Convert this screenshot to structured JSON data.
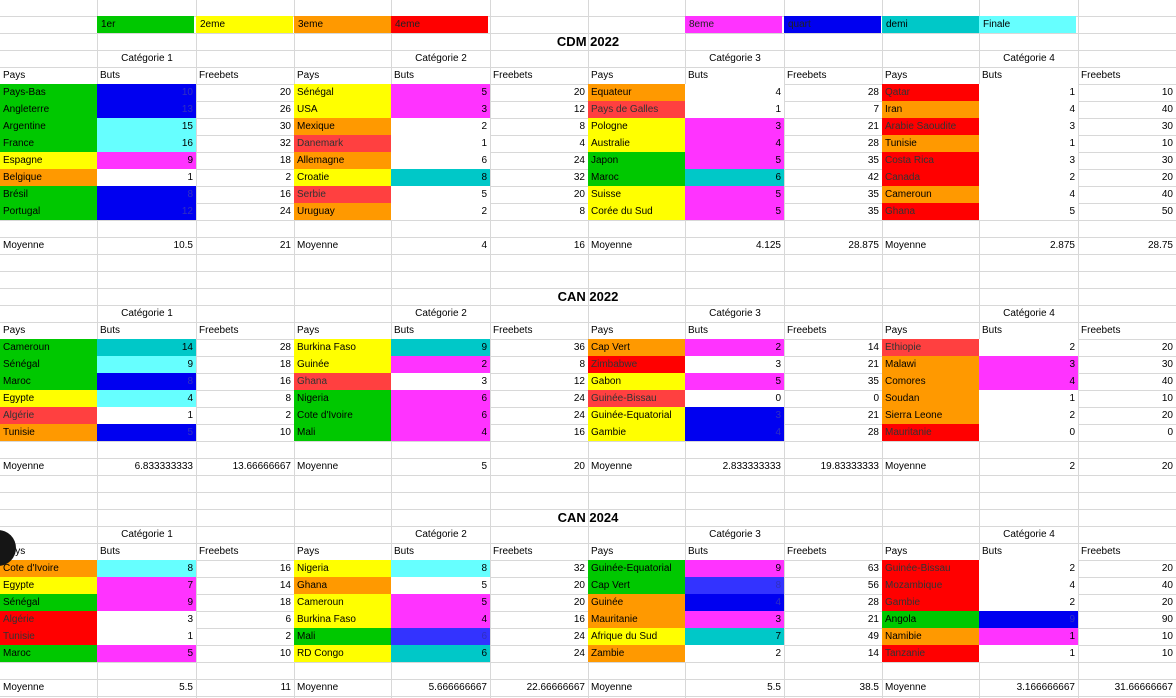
{
  "colors": {
    "green": "#00c800",
    "blue": "#0000f0",
    "cyan": "#66ffff",
    "yellow": "#ffff00",
    "orange": "#ff9900",
    "red": "#ff0000",
    "magenta": "#ff33ff",
    "white": "#ffffff",
    "redsoft": "#ff4040",
    "teal": "#00c8c8",
    "blue2": "#3333ff"
  },
  "legend": [
    {
      "label": "1er",
      "color": "green"
    },
    {
      "label": "2eme",
      "color": "yellow"
    },
    {
      "label": "3eme",
      "color": "orange"
    },
    {
      "label": "4eme",
      "color": "red"
    },
    {
      "label": "8eme",
      "color": "magenta"
    },
    {
      "label": "quart",
      "color": "blue"
    },
    {
      "label": "demi",
      "color": "teal"
    },
    {
      "label": "Finale",
      "color": "cyan"
    }
  ],
  "headers": {
    "pays": "Pays",
    "buts": "Buts",
    "freebets": "Freebets",
    "moyenne": "Moyenne"
  },
  "sections": [
    {
      "title": "CDM 2022",
      "categories": [
        {
          "name": "Catégorie 1",
          "rows": [
            {
              "country": "Pays-Bas",
              "cc": "green",
              "goals": "10",
              "gc": "blue",
              "fb": "20"
            },
            {
              "country": "Angleterre",
              "cc": "green",
              "goals": "13",
              "gc": "blue",
              "fb": "26"
            },
            {
              "country": "Argentine",
              "cc": "green",
              "goals": "15",
              "gc": "cyan",
              "fb": "30"
            },
            {
              "country": "France",
              "cc": "green",
              "goals": "16",
              "gc": "cyan",
              "fb": "32"
            },
            {
              "country": "Espagne",
              "cc": "yellow",
              "goals": "9",
              "gc": "magenta",
              "fb": "18"
            },
            {
              "country": "Belgique",
              "cc": "orange",
              "goals": "1",
              "gc": "white",
              "fb": "2"
            },
            {
              "country": "Brésil",
              "cc": "green",
              "goals": "8",
              "gc": "blue",
              "fb": "16"
            },
            {
              "country": "Portugal",
              "cc": "green",
              "goals": "12",
              "gc": "blue",
              "fb": "24"
            }
          ],
          "avg_goals": "10.5",
          "avg_fb": "21"
        },
        {
          "name": "Catégorie 2",
          "rows": [
            {
              "country": "Sénégal",
              "cc": "yellow",
              "goals": "5",
              "gc": "magenta",
              "fb": "20"
            },
            {
              "country": "USA",
              "cc": "yellow",
              "goals": "3",
              "gc": "magenta",
              "fb": "12"
            },
            {
              "country": "Mexique",
              "cc": "orange",
              "goals": "2",
              "gc": "white",
              "fb": "8"
            },
            {
              "country": "Danemark",
              "cc": "redsoft",
              "goals": "1",
              "gc": "white",
              "fb": "4"
            },
            {
              "country": "Allemagne",
              "cc": "orange",
              "goals": "6",
              "gc": "white",
              "fb": "24"
            },
            {
              "country": "Croatie",
              "cc": "yellow",
              "goals": "8",
              "gc": "teal",
              "fb": "32"
            },
            {
              "country": "Serbie",
              "cc": "redsoft",
              "goals": "5",
              "gc": "white",
              "fb": "20"
            },
            {
              "country": "Uruguay",
              "cc": "orange",
              "goals": "2",
              "gc": "white",
              "fb": "8"
            }
          ],
          "avg_goals": "4",
          "avg_fb": "16"
        },
        {
          "name": "Catégorie 3",
          "rows": [
            {
              "country": "Equateur",
              "cc": "orange",
              "goals": "4",
              "gc": "white",
              "fb": "28"
            },
            {
              "country": "Pays de Galles",
              "cc": "redsoft",
              "goals": "1",
              "gc": "white",
              "fb": "7"
            },
            {
              "country": "Pologne",
              "cc": "yellow",
              "goals": "3",
              "gc": "magenta",
              "fb": "21"
            },
            {
              "country": "Australie",
              "cc": "yellow",
              "goals": "4",
              "gc": "magenta",
              "fb": "28"
            },
            {
              "country": "Japon",
              "cc": "green",
              "goals": "5",
              "gc": "magenta",
              "fb": "35"
            },
            {
              "country": "Maroc",
              "cc": "green",
              "goals": "6",
              "gc": "teal",
              "fb": "42"
            },
            {
              "country": "Suisse",
              "cc": "yellow",
              "goals": "5",
              "gc": "magenta",
              "fb": "35"
            },
            {
              "country": "Corée du Sud",
              "cc": "yellow",
              "goals": "5",
              "gc": "magenta",
              "fb": "35"
            }
          ],
          "avg_goals": "4.125",
          "avg_fb": "28.875"
        },
        {
          "name": "Catégorie 4",
          "rows": [
            {
              "country": "Qatar",
              "cc": "red",
              "goals": "1",
              "gc": "white",
              "fb": "10"
            },
            {
              "country": "Iran",
              "cc": "orange",
              "goals": "4",
              "gc": "white",
              "fb": "40"
            },
            {
              "country": "Arabie Saoudite",
              "cc": "red",
              "goals": "3",
              "gc": "white",
              "fb": "30"
            },
            {
              "country": "Tunisie",
              "cc": "orange",
              "goals": "1",
              "gc": "white",
              "fb": "10"
            },
            {
              "country": "Costa Rica",
              "cc": "red",
              "goals": "3",
              "gc": "white",
              "fb": "30"
            },
            {
              "country": "Canada",
              "cc": "red",
              "goals": "2",
              "gc": "white",
              "fb": "20"
            },
            {
              "country": "Cameroun",
              "cc": "orange",
              "goals": "4",
              "gc": "white",
              "fb": "40"
            },
            {
              "country": "Ghana",
              "cc": "red",
              "goals": "5",
              "gc": "white",
              "fb": "50"
            }
          ],
          "avg_goals": "2.875",
          "avg_fb": "28.75"
        }
      ]
    },
    {
      "title": "CAN 2022",
      "categories": [
        {
          "name": "Catégorie 1",
          "rows": [
            {
              "country": "Cameroun",
              "cc": "green",
              "goals": "14",
              "gc": "teal",
              "fb": "28"
            },
            {
              "country": "Sénégal",
              "cc": "green",
              "goals": "9",
              "gc": "cyan",
              "fb": "18"
            },
            {
              "country": "Maroc",
              "cc": "green",
              "goals": "8",
              "gc": "blue",
              "fb": "16"
            },
            {
              "country": "Egypte",
              "cc": "yellow",
              "goals": "4",
              "gc": "cyan",
              "fb": "8"
            },
            {
              "country": "Algérie",
              "cc": "redsoft",
              "goals": "1",
              "gc": "white",
              "fb": "2"
            },
            {
              "country": "Tunisie",
              "cc": "orange",
              "goals": "5",
              "gc": "blue",
              "fb": "10"
            }
          ],
          "avg_goals": "6.833333333",
          "avg_fb": "13.66666667"
        },
        {
          "name": "Catégorie 2",
          "rows": [
            {
              "country": "Burkina Faso",
              "cc": "yellow",
              "goals": "9",
              "gc": "teal",
              "fb": "36"
            },
            {
              "country": "Guinée",
              "cc": "yellow",
              "goals": "2",
              "gc": "magenta",
              "fb": "8"
            },
            {
              "country": "Ghana",
              "cc": "redsoft",
              "goals": "3",
              "gc": "white",
              "fb": "12"
            },
            {
              "country": "Nigeria",
              "cc": "green",
              "goals": "6",
              "gc": "magenta",
              "fb": "24"
            },
            {
              "country": "Cote d'Ivoire",
              "cc": "green",
              "goals": "6",
              "gc": "magenta",
              "fb": "24"
            },
            {
              "country": "Mali",
              "cc": "green",
              "goals": "4",
              "gc": "magenta",
              "fb": "16"
            }
          ],
          "avg_goals": "5",
          "avg_fb": "20"
        },
        {
          "name": "Catégorie 3",
          "rows": [
            {
              "country": "Cap Vert",
              "cc": "orange",
              "goals": "2",
              "gc": "magenta",
              "fb": "14"
            },
            {
              "country": "Zimbabwe",
              "cc": "red",
              "goals": "3",
              "gc": "white",
              "fb": "21"
            },
            {
              "country": "Gabon",
              "cc": "yellow",
              "goals": "5",
              "gc": "magenta",
              "fb": "35"
            },
            {
              "country": "Guinée-Bissau",
              "cc": "redsoft",
              "goals": "0",
              "gc": "white",
              "fb": "0"
            },
            {
              "country": "Guinée-Equatorial",
              "cc": "yellow",
              "goals": "3",
              "gc": "blue",
              "fb": "21"
            },
            {
              "country": "Gambie",
              "cc": "yellow",
              "goals": "4",
              "gc": "blue",
              "fb": "28"
            }
          ],
          "avg_goals": "2.833333333",
          "avg_fb": "19.83333333"
        },
        {
          "name": "Catégorie 4",
          "rows": [
            {
              "country": "Ethiopie",
              "cc": "redsoft",
              "goals": "2",
              "gc": "white",
              "fb": "20"
            },
            {
              "country": "Malawi",
              "cc": "orange",
              "goals": "3",
              "gc": "magenta",
              "fb": "30"
            },
            {
              "country": "Comores",
              "cc": "orange",
              "goals": "4",
              "gc": "magenta",
              "fb": "40"
            },
            {
              "country": "Soudan",
              "cc": "orange",
              "goals": "1",
              "gc": "white",
              "fb": "10"
            },
            {
              "country": "Sierra Leone",
              "cc": "orange",
              "goals": "2",
              "gc": "white",
              "fb": "20"
            },
            {
              "country": "Mauritanie",
              "cc": "red",
              "goals": "0",
              "gc": "white",
              "fb": "0"
            }
          ],
          "avg_goals": "2",
          "avg_fb": "20"
        }
      ]
    },
    {
      "title": "CAN 2024",
      "categories": [
        {
          "name": "Catégorie 1",
          "rows": [
            {
              "country": "Cote d'Ivoire",
              "cc": "orange",
              "goals": "8",
              "gc": "cyan",
              "fb": "16"
            },
            {
              "country": "Egypte",
              "cc": "yellow",
              "goals": "7",
              "gc": "magenta",
              "fb": "14"
            },
            {
              "country": "Sénégal",
              "cc": "green",
              "goals": "9",
              "gc": "magenta",
              "fb": "18"
            },
            {
              "country": "Algérie",
              "cc": "red",
              "goals": "3",
              "gc": "white",
              "fb": "6"
            },
            {
              "country": "Tunisie",
              "cc": "red",
              "goals": "1",
              "gc": "white",
              "fb": "2"
            },
            {
              "country": "Maroc",
              "cc": "green",
              "goals": "5",
              "gc": "magenta",
              "fb": "10"
            }
          ],
          "avg_goals": "5.5",
          "avg_fb": "11"
        },
        {
          "name": "Catégorie 2",
          "rows": [
            {
              "country": "Nigeria",
              "cc": "yellow",
              "goals": "8",
              "gc": "cyan",
              "fb": "32"
            },
            {
              "country": "Ghana",
              "cc": "orange",
              "goals": "5",
              "gc": "white",
              "fb": "20"
            },
            {
              "country": "Cameroun",
              "cc": "yellow",
              "goals": "5",
              "gc": "magenta",
              "fb": "20"
            },
            {
              "country": "Burkina Faso",
              "cc": "yellow",
              "goals": "4",
              "gc": "magenta",
              "fb": "16"
            },
            {
              "country": "Mali",
              "cc": "green",
              "goals": "6",
              "gc": "blue2",
              "fb": "24"
            },
            {
              "country": "RD Congo",
              "cc": "yellow",
              "goals": "6",
              "gc": "teal",
              "fb": "24"
            }
          ],
          "avg_goals": "5.666666667",
          "avg_fb": "22.66666667"
        },
        {
          "name": "Catégorie 3",
          "rows": [
            {
              "country": "Guinée-Equatorial",
              "cc": "green",
              "goals": "9",
              "gc": "magenta",
              "fb": "63"
            },
            {
              "country": "Cap Vert",
              "cc": "green",
              "goals": "8",
              "gc": "blue2",
              "fb": "56"
            },
            {
              "country": "Guinée",
              "cc": "orange",
              "goals": "4",
              "gc": "blue",
              "fb": "28"
            },
            {
              "country": "Mauritanie",
              "cc": "orange",
              "goals": "3",
              "gc": "magenta",
              "fb": "21"
            },
            {
              "country": "Afrique du Sud",
              "cc": "yellow",
              "goals": "7",
              "gc": "teal",
              "fb": "49"
            },
            {
              "country": "Zambie",
              "cc": "orange",
              "goals": "2",
              "gc": "white",
              "fb": "14"
            }
          ],
          "avg_goals": "5.5",
          "avg_fb": "38.5"
        },
        {
          "name": "Catégorie 4",
          "rows": [
            {
              "country": "Guinée-Bissau",
              "cc": "red",
              "goals": "2",
              "gc": "white",
              "fb": "20"
            },
            {
              "country": "Mozambique",
              "cc": "red",
              "goals": "4",
              "gc": "white",
              "fb": "40"
            },
            {
              "country": "Gambie",
              "cc": "red",
              "goals": "2",
              "gc": "white",
              "fb": "20"
            },
            {
              "country": "Angola",
              "cc": "green",
              "goals": "9",
              "gc": "blue",
              "fb": "90"
            },
            {
              "country": "Namibie",
              "cc": "orange",
              "goals": "1",
              "gc": "magenta",
              "fb": "10"
            },
            {
              "country": "Tanzanie",
              "cc": "red",
              "goals": "1",
              "gc": "white",
              "fb": "10"
            }
          ],
          "avg_goals": "3.166666667",
          "avg_fb": "31.66666667"
        }
      ]
    }
  ]
}
